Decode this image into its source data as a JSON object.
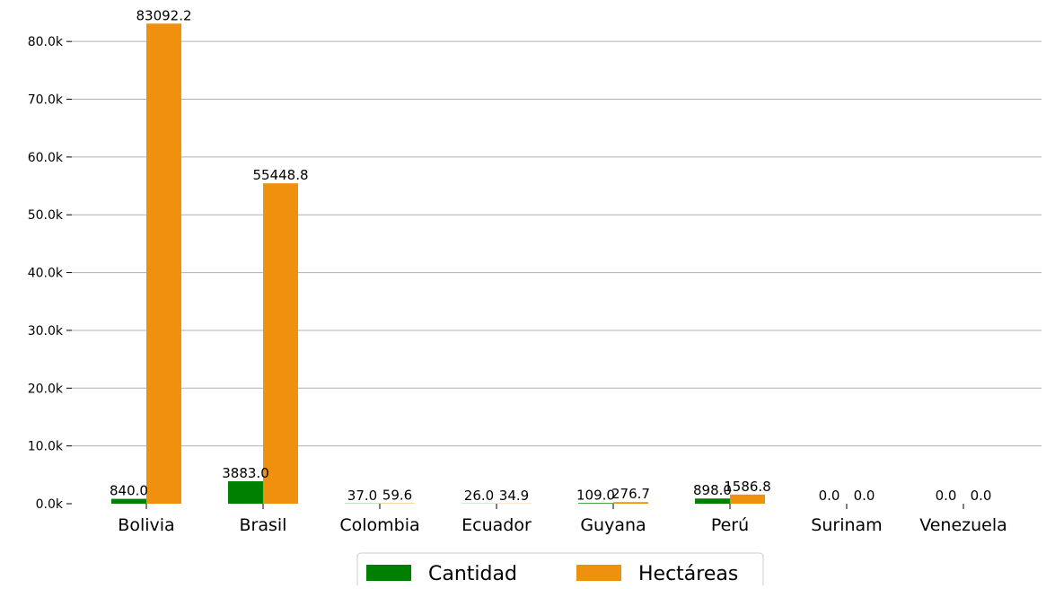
{
  "chart_data": {
    "type": "bar",
    "title": "",
    "xlabel": "",
    "ylabel": "",
    "categories": [
      "Bolivia",
      "Brasil",
      "Colombia",
      "Ecuador",
      "Guyana",
      "Perú",
      "Surinam",
      "Venezuela"
    ],
    "series": [
      {
        "name": "Cantidad",
        "color": "#008000",
        "values": [
          840.0,
          3883.0,
          37.0,
          26.0,
          109.0,
          898.0,
          0.0,
          0.0
        ]
      },
      {
        "name": "Hectáreas",
        "color": "#f0900f",
        "values": [
          83092.2,
          55448.8,
          59.6,
          34.9,
          276.7,
          1586.8,
          0.0,
          0.0
        ]
      }
    ],
    "data_labels": [
      [
        "840.0",
        "3883.0",
        "37.0",
        "26.0",
        "109.0",
        "898.0",
        "0.0",
        "0.0"
      ],
      [
        "83092.2",
        "55448.8",
        "59.6",
        "34.9",
        "276.7",
        "1586.8",
        "0.0",
        "0.0"
      ]
    ],
    "ylim": [
      0,
      85000
    ],
    "yticks": [
      0,
      10000,
      20000,
      30000,
      40000,
      50000,
      60000,
      70000,
      80000
    ],
    "ytick_labels": [
      "0.0k",
      "10.0k",
      "20.0k",
      "30.0k",
      "40.0k",
      "50.0k",
      "60.0k",
      "70.0k",
      "80.0k"
    ],
    "grid": "y",
    "legend_position": "bottom-center"
  }
}
